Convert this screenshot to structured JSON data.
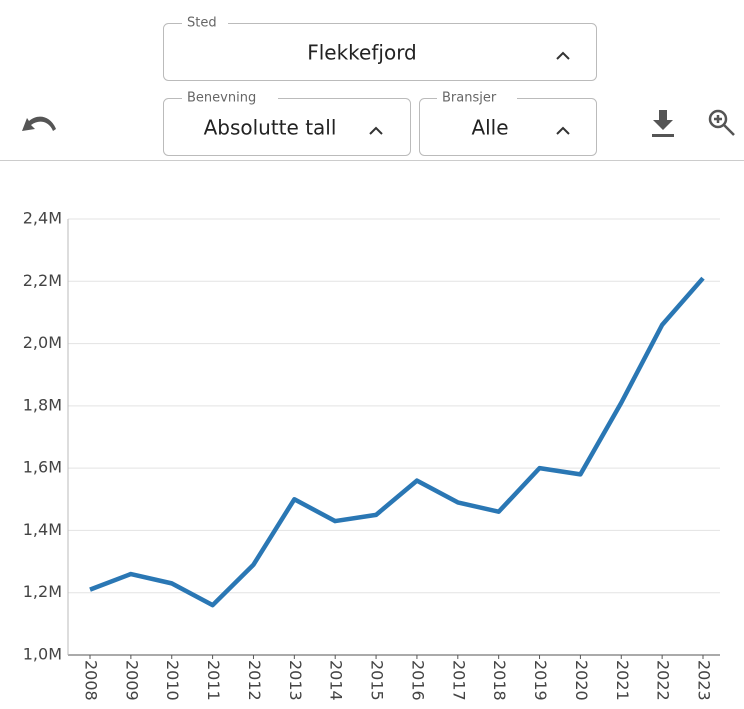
{
  "controls": {
    "sted": {
      "label": "Sted",
      "value": "Flekkefjord"
    },
    "benevning": {
      "label": "Benevning",
      "value": "Absolutte tall"
    },
    "bransjer": {
      "label": "Bransjer",
      "value": "Alle"
    }
  },
  "chart_data": {
    "type": "line",
    "x": [
      "2008",
      "2009",
      "2010",
      "2011",
      "2012",
      "2013",
      "2014",
      "2015",
      "2016",
      "2017",
      "2018",
      "2019",
      "2020",
      "2021",
      "2022",
      "2023"
    ],
    "series": [
      {
        "color": "#2a77b4",
        "values": [
          1210000,
          1260000,
          1230000,
          1160000,
          1290000,
          1500000,
          1430000,
          1450000,
          1560000,
          1490000,
          1460000,
          1600000,
          1580000,
          1810000,
          2060000,
          2210000
        ]
      }
    ],
    "ylim": [
      1000000,
      2400000
    ],
    "yticks": [
      {
        "value": 1000000,
        "label": "1,0M"
      },
      {
        "value": 1200000,
        "label": "1,2M"
      },
      {
        "value": 1400000,
        "label": "1,4M"
      },
      {
        "value": 1600000,
        "label": "1,6M"
      },
      {
        "value": 1800000,
        "label": "1,8M"
      },
      {
        "value": 2000000,
        "label": "2,0M"
      },
      {
        "value": 2200000,
        "label": "2,2M"
      },
      {
        "value": 2400000,
        "label": "2,4M"
      }
    ],
    "grid": true
  }
}
